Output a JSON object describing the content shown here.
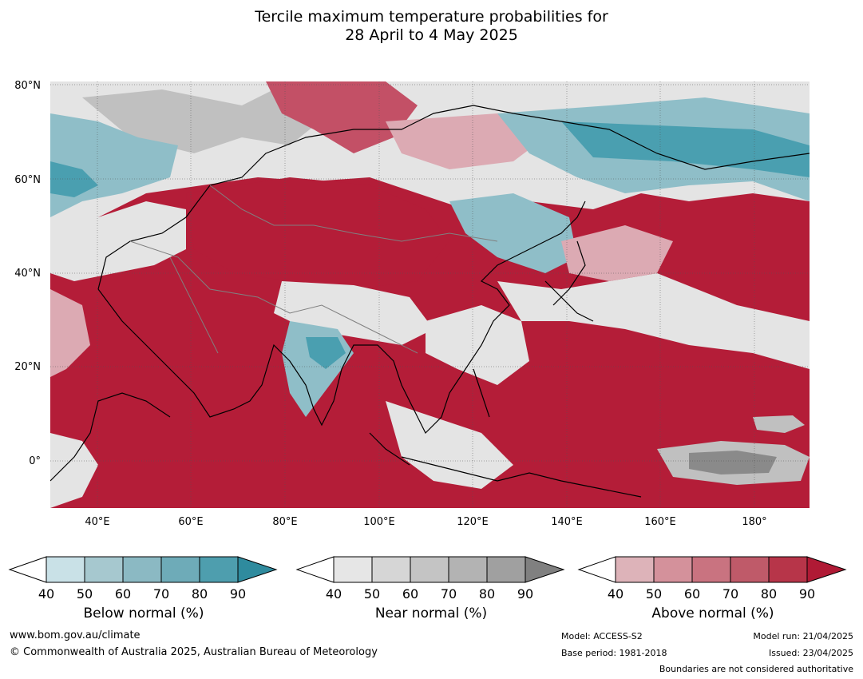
{
  "title_line1": "Tercile maximum temperature probabilities for",
  "title_line2": "28 April to 4 May 2025",
  "map": {
    "lat_labels": [
      "80°N",
      "60°N",
      "40°N",
      "20°N",
      "0°"
    ],
    "lon_labels": [
      "40°E",
      "60°E",
      "80°E",
      "100°E",
      "120°E",
      "140°E",
      "160°E",
      "180°"
    ],
    "colors": {
      "ocean_above": "#b41d38",
      "land_above_mid": "#c35066",
      "above_light": "#dcaab3",
      "near_light": "#e4e4e4",
      "near_mid": "#c0c0c0",
      "near_dark": "#8a8a8a",
      "below_light": "#c5dee4",
      "below_mid": "#8fbec8",
      "below_dark": "#4a9fb0",
      "coast": "#000000",
      "border": "#808080"
    }
  },
  "legends": [
    {
      "title": "Below normal (%)",
      "ticks": [
        "40",
        "50",
        "60",
        "70",
        "80",
        "90"
      ],
      "colors": [
        "#c9e1e7",
        "#a6c8cf",
        "#8bb9c3",
        "#6eabb8",
        "#4e9eae",
        "#2f8b9e"
      ]
    },
    {
      "title": "Near normal (%)",
      "ticks": [
        "40",
        "50",
        "60",
        "70",
        "80",
        "90"
      ],
      "colors": [
        "#e6e6e6",
        "#d6d6d6",
        "#c4c4c4",
        "#b3b3b3",
        "#a0a0a0",
        "#808080"
      ]
    },
    {
      "title": "Above normal (%)",
      "ticks": [
        "40",
        "50",
        "60",
        "70",
        "80",
        "90"
      ],
      "colors": [
        "#ddb3b9",
        "#d4919b",
        "#c97380",
        "#bf5a69",
        "#b73549",
        "#b01a35"
      ]
    }
  ],
  "footer": {
    "url": "www.bom.gov.au/climate",
    "copyright": "© Commonwealth of Australia 2025, Australian Bureau of Meteorology",
    "model": "Model: ACCESS-S2",
    "base_period": "Base period: 1981-2018",
    "model_run": "Model run: 21/04/2025",
    "issued": "Issued: 23/04/2025",
    "disclaimer": "Boundaries are not considered authoritative"
  }
}
